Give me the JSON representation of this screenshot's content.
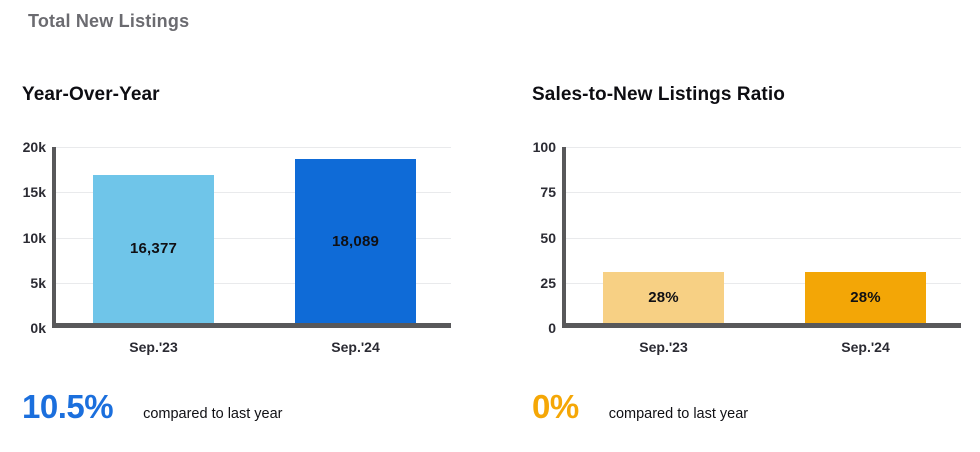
{
  "header": {
    "title": "Total New Listings"
  },
  "chart_data": [
    {
      "type": "bar",
      "title": "Year-Over-Year",
      "categories": [
        "Sep.'23",
        "Sep.'24"
      ],
      "values": [
        16377,
        18089
      ],
      "value_labels": [
        "16,377",
        "18,089"
      ],
      "bar_colors": [
        "#6fc5e9",
        "#0f6bd7"
      ],
      "xlabel": "",
      "ylabel": "",
      "ylim": [
        0,
        20000
      ],
      "yticks": [
        {
          "label": "0k",
          "value": 0
        },
        {
          "label": "5k",
          "value": 5000
        },
        {
          "label": "10k",
          "value": 10000
        },
        {
          "label": "15k",
          "value": 15000
        },
        {
          "label": "20k",
          "value": 20000
        }
      ],
      "grid": true,
      "legend": "none",
      "stat": {
        "value": "10.5%",
        "caption": "compared to last year",
        "color": "#1b6fdd"
      }
    },
    {
      "type": "bar",
      "title": "Sales-to-New Listings Ratio",
      "categories": [
        "Sep.'23",
        "Sep.'24"
      ],
      "values": [
        28,
        28
      ],
      "value_labels": [
        "28%",
        "28%"
      ],
      "bar_colors": [
        "#f7d084",
        "#f3a606"
      ],
      "xlabel": "",
      "ylabel": "",
      "ylim": [
        0,
        100
      ],
      "yticks": [
        {
          "label": "0",
          "value": 0
        },
        {
          "label": "25",
          "value": 25
        },
        {
          "label": "50",
          "value": 50
        },
        {
          "label": "75",
          "value": 75
        },
        {
          "label": "100",
          "value": 100
        }
      ],
      "grid": true,
      "legend": "none",
      "stat": {
        "value": "0%",
        "caption": "compared to last year",
        "color": "#f5a706"
      }
    }
  ],
  "colors": {
    "axis": "#58585a",
    "gridline": "#e9eaec",
    "tick_text": "#2b2b33",
    "page_title_text": "#6b6b70"
  }
}
